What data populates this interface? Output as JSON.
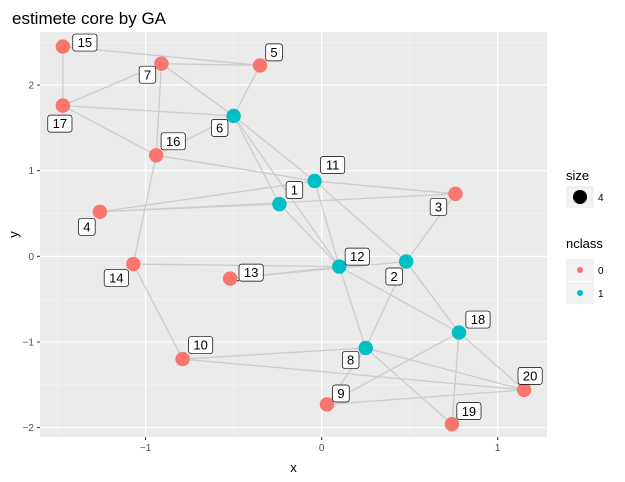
{
  "chart_data": {
    "type": "scatter",
    "title": "estimete core by GA",
    "xlabel": "x",
    "ylabel": "y",
    "xlim": [
      -1.6,
      1.28
    ],
    "ylim": [
      -2.11,
      2.62
    ],
    "x_ticks": [
      -1,
      0,
      1
    ],
    "y_ticks": [
      -2,
      -1,
      0,
      1,
      2
    ],
    "grid": true,
    "colors": {
      "0": "#F8766D",
      "1": "#00BFC4"
    },
    "legend": {
      "position": "right",
      "size_title": "size",
      "size_value": "4",
      "color_title": "nclass",
      "color_labels": [
        "0",
        "1"
      ]
    },
    "nodes": [
      {
        "id": "1",
        "x": -0.24,
        "y": 0.61,
        "nclass": 1
      },
      {
        "id": "2",
        "x": 0.48,
        "y": -0.06,
        "nclass": 1
      },
      {
        "id": "3",
        "x": 0.76,
        "y": 0.73,
        "nclass": 0
      },
      {
        "id": "4",
        "x": -1.26,
        "y": 0.52,
        "nclass": 0
      },
      {
        "id": "5",
        "x": -0.35,
        "y": 2.23,
        "nclass": 0
      },
      {
        "id": "6",
        "x": -0.5,
        "y": 1.64,
        "nclass": 1
      },
      {
        "id": "7",
        "x": -0.91,
        "y": 2.25,
        "nclass": 0
      },
      {
        "id": "8",
        "x": 0.25,
        "y": -1.07,
        "nclass": 1
      },
      {
        "id": "9",
        "x": 0.03,
        "y": -1.73,
        "nclass": 0
      },
      {
        "id": "10",
        "x": -0.79,
        "y": -1.2,
        "nclass": 0
      },
      {
        "id": "11",
        "x": -0.04,
        "y": 0.88,
        "nclass": 1
      },
      {
        "id": "12",
        "x": 0.1,
        "y": -0.12,
        "nclass": 1
      },
      {
        "id": "13",
        "x": -0.52,
        "y": -0.26,
        "nclass": 0
      },
      {
        "id": "14",
        "x": -1.07,
        "y": -0.09,
        "nclass": 0
      },
      {
        "id": "15",
        "x": -1.47,
        "y": 2.45,
        "nclass": 0
      },
      {
        "id": "16",
        "x": -0.94,
        "y": 1.18,
        "nclass": 0
      },
      {
        "id": "17",
        "x": -1.47,
        "y": 1.76,
        "nclass": 0
      },
      {
        "id": "18",
        "x": 0.78,
        "y": -0.89,
        "nclass": 1
      },
      {
        "id": "19",
        "x": 0.74,
        "y": -1.96,
        "nclass": 0
      },
      {
        "id": "20",
        "x": 1.15,
        "y": -1.56,
        "nclass": 0
      }
    ],
    "edges": [
      [
        "15",
        "5"
      ],
      [
        "15",
        "17"
      ],
      [
        "7",
        "5"
      ],
      [
        "7",
        "17"
      ],
      [
        "7",
        "16"
      ],
      [
        "7",
        "6"
      ],
      [
        "17",
        "6"
      ],
      [
        "17",
        "16"
      ],
      [
        "5",
        "6"
      ],
      [
        "6",
        "1"
      ],
      [
        "6",
        "11"
      ],
      [
        "6",
        "12"
      ],
      [
        "16",
        "11"
      ],
      [
        "16",
        "14"
      ],
      [
        "16",
        "6"
      ],
      [
        "11",
        "3"
      ],
      [
        "11",
        "2"
      ],
      [
        "11",
        "12"
      ],
      [
        "1",
        "4"
      ],
      [
        "1",
        "12"
      ],
      [
        "4",
        "3"
      ],
      [
        "4",
        "11"
      ],
      [
        "13",
        "12"
      ],
      [
        "13",
        "2"
      ],
      [
        "14",
        "12"
      ],
      [
        "14",
        "10"
      ],
      [
        "12",
        "8"
      ],
      [
        "2",
        "8"
      ],
      [
        "2",
        "18"
      ],
      [
        "12",
        "18"
      ],
      [
        "3",
        "2"
      ],
      [
        "10",
        "8"
      ],
      [
        "10",
        "20"
      ],
      [
        "8",
        "20"
      ],
      [
        "8",
        "19"
      ],
      [
        "18",
        "9"
      ],
      [
        "18",
        "19"
      ],
      [
        "18",
        "20"
      ],
      [
        "9",
        "20"
      ],
      [
        "9",
        "8"
      ]
    ],
    "labels": [
      {
        "id": "1"
      },
      {
        "id": "2"
      },
      {
        "id": "3"
      },
      {
        "id": "4"
      },
      {
        "id": "5"
      },
      {
        "id": "6"
      },
      {
        "id": "7"
      },
      {
        "id": "8"
      },
      {
        "id": "9"
      },
      {
        "id": "10"
      },
      {
        "id": "11"
      },
      {
        "id": "12"
      },
      {
        "id": "13"
      },
      {
        "id": "14"
      },
      {
        "id": "15"
      },
      {
        "id": "16"
      },
      {
        "id": "17"
      },
      {
        "id": "18"
      },
      {
        "id": "19"
      },
      {
        "id": "20"
      }
    ]
  }
}
